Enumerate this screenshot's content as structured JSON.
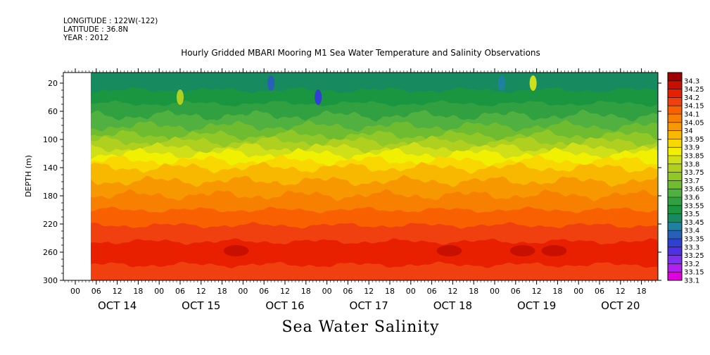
{
  "header": {
    "longitude": "LONGITUDE : 122W(-122)",
    "latitude": "LATITUDE : 36.8N",
    "year": "YEAR : 2012"
  },
  "chart_data": {
    "type": "heatmap",
    "title": "Hourly Gridded MBARI Mooring M1 Sea Water Temperature and Salinity Observations",
    "variable_title": "Sea Water Salinity",
    "ylabel": "DEPTH (m)",
    "ylim": [
      300,
      5
    ],
    "y_ticks": [
      20,
      60,
      100,
      140,
      180,
      220,
      260,
      300
    ],
    "x_hour_ticks": [
      "00",
      "06",
      "12",
      "18",
      "00",
      "06",
      "12",
      "18",
      "00",
      "06",
      "12",
      "18",
      "00",
      "06",
      "12",
      "18",
      "00",
      "06",
      "12",
      "18",
      "00",
      "06",
      "12",
      "18",
      "00",
      "06",
      "12",
      "18"
    ],
    "x_day_labels": [
      "OCT 14",
      "OCT 15",
      "OCT 16",
      "OCT 17",
      "OCT 18",
      "OCT 19",
      "OCT 20"
    ],
    "colorbar": {
      "levels": [
        33.1,
        33.15,
        33.2,
        33.25,
        33.3,
        33.35,
        33.4,
        33.45,
        33.5,
        33.55,
        33.6,
        33.65,
        33.7,
        33.75,
        33.8,
        33.85,
        33.9,
        33.95,
        34,
        34.05,
        34.1,
        34.15,
        34.2,
        34.25,
        34.3
      ],
      "labels": [
        "33.1",
        "33.15",
        "33.2",
        "33.25",
        "33.3",
        "33.35",
        "33.4",
        "33.45",
        "33.5",
        "33.55",
        "33.6",
        "33.65",
        "33.7",
        "33.75",
        "33.8",
        "33.85",
        "33.9",
        "33.95",
        "34",
        "34.05",
        "34.1",
        "34.15",
        "34.2",
        "34.25",
        "34.3"
      ],
      "colors": [
        "#e000e0",
        "#b020f0",
        "#8030f0",
        "#5030e0",
        "#3040d0",
        "#2860b8",
        "#2080a0",
        "#188a60",
        "#1a9640",
        "#30a040",
        "#50b040",
        "#70bc30",
        "#90c828",
        "#b0d020",
        "#d0e018",
        "#f0f000",
        "#f8d800",
        "#f8b800",
        "#f89800",
        "#f88000",
        "#f86000",
        "#f04010",
        "#e82000",
        "#c81000",
        "#a00000"
      ]
    },
    "profile": [
      {
        "depth": 10,
        "salinity": 33.45
      },
      {
        "depth": 30,
        "salinity": 33.5
      },
      {
        "depth": 60,
        "salinity": 33.58
      },
      {
        "depth": 90,
        "salinity": 33.68
      },
      {
        "depth": 120,
        "salinity": 33.85
      },
      {
        "depth": 140,
        "salinity": 33.95
      },
      {
        "depth": 170,
        "salinity": 34.03
      },
      {
        "depth": 200,
        "salinity": 34.1
      },
      {
        "depth": 230,
        "salinity": 34.17
      },
      {
        "depth": 255,
        "salinity": 34.22
      },
      {
        "depth": 270,
        "salinity": 34.2
      },
      {
        "depth": 300,
        "salinity": 34.15
      }
    ],
    "blobs": [
      {
        "hour": 69.5,
        "depth": 40,
        "salinity": 33.3
      },
      {
        "hour": 56,
        "depth": 20,
        "salinity": 33.35
      },
      {
        "hour": 122,
        "depth": 20,
        "salinity": 33.4
      },
      {
        "hour": 30,
        "depth": 40,
        "salinity": 33.75
      },
      {
        "hour": 131,
        "depth": 20,
        "salinity": 33.8
      },
      {
        "hour": 107,
        "depth": 258,
        "salinity": 34.25
      },
      {
        "hour": 46,
        "depth": 258,
        "salinity": 34.25
      },
      {
        "hour": 128,
        "depth": 258,
        "salinity": 34.25
      },
      {
        "hour": 137,
        "depth": 258,
        "salinity": 34.25
      }
    ]
  }
}
